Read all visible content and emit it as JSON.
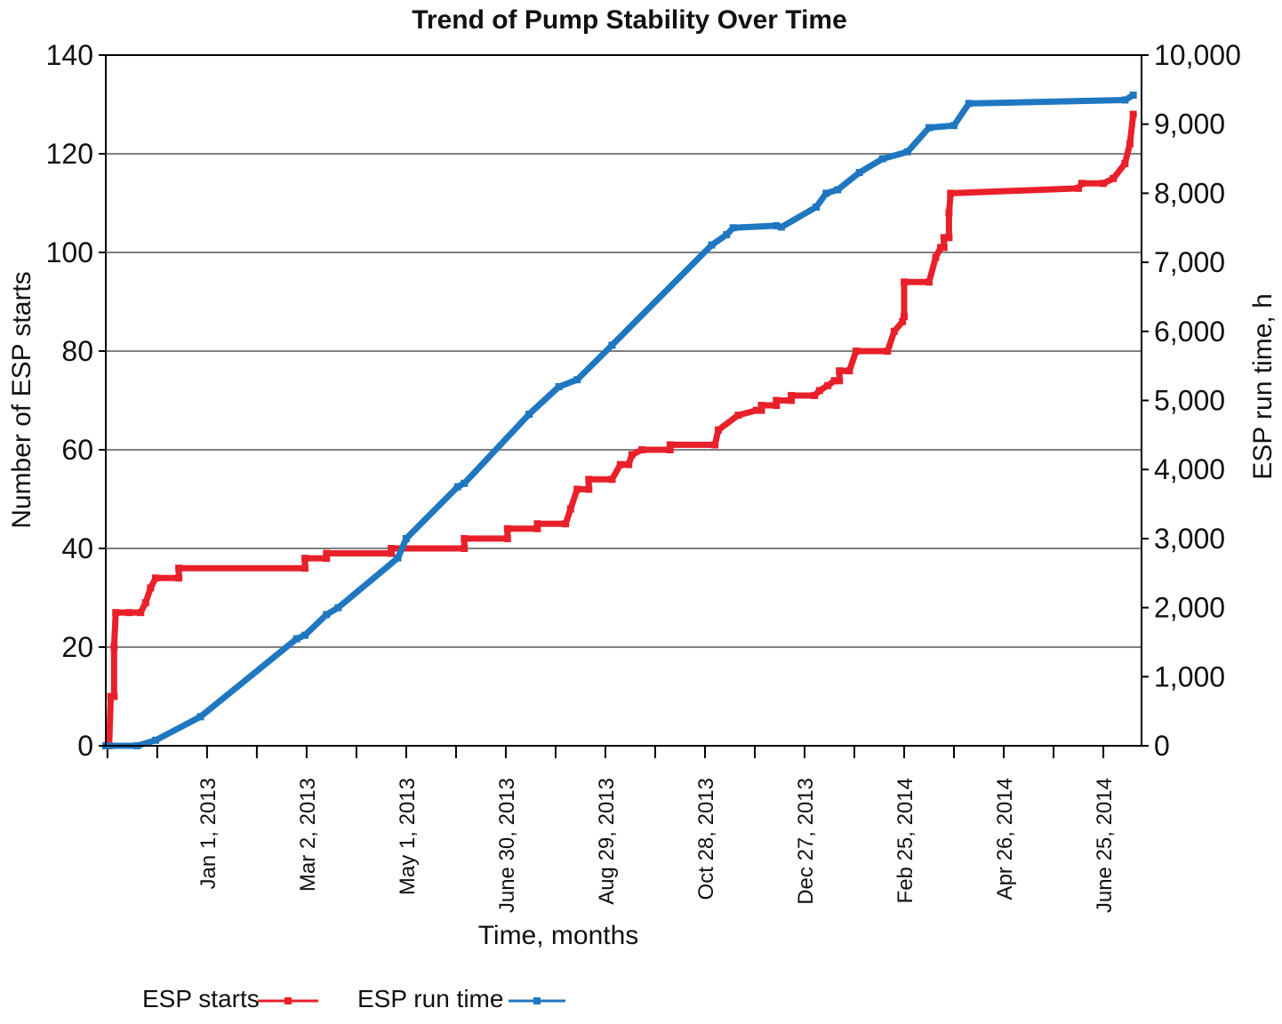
{
  "chart_data": {
    "type": "line",
    "title": "Trend of Pump Stability Over Time",
    "xlabel": "Time, months",
    "ylabel": "Number of ESP starts",
    "y2label": "ESP run time, h",
    "ylim": [
      0,
      140
    ],
    "y2lim": [
      0,
      10000
    ],
    "yticks": [
      "0",
      "20",
      "40",
      "60",
      "80",
      "100",
      "120",
      "140"
    ],
    "y2ticks": [
      "0",
      "1,000",
      "2,000",
      "3,000",
      "4,000",
      "5,000",
      "6,000",
      "7,000",
      "8,000",
      "9,000",
      "10,000"
    ],
    "xlim": [
      "2012-11-01",
      "2014-07-18"
    ],
    "xticks": [
      {
        "date": "2013-01-01",
        "label": "Jan 1, 2013"
      },
      {
        "date": "2013-03-02",
        "label": "Mar 2, 2013"
      },
      {
        "date": "2013-05-01",
        "label": "May 1, 2013"
      },
      {
        "date": "2013-06-30",
        "label": "June 30, 2013"
      },
      {
        "date": "2013-08-29",
        "label": "Aug 29, 2013"
      },
      {
        "date": "2013-10-28",
        "label": "Oct 28, 2013"
      },
      {
        "date": "2013-12-27",
        "label": "Dec 27, 2013"
      },
      {
        "date": "2014-02-25",
        "label": "Feb 25, 2014"
      },
      {
        "date": "2014-04-26",
        "label": "Apr 26, 2014"
      },
      {
        "date": "2014-06-25",
        "label": "June 25, 2014"
      }
    ],
    "grid": true,
    "legend_position": "bottom-left",
    "series": [
      {
        "name": "ESP starts",
        "axis": "left",
        "color": "#e8202a",
        "points": [
          [
            "2012-11-01",
            0
          ],
          [
            "2012-11-03",
            0
          ],
          [
            "2012-11-04",
            10
          ],
          [
            "2012-11-06",
            10
          ],
          [
            "2012-11-06",
            20
          ],
          [
            "2012-11-07",
            27
          ],
          [
            "2012-11-15",
            27
          ],
          [
            "2012-11-22",
            27
          ],
          [
            "2012-11-25",
            29
          ],
          [
            "2012-11-28",
            32
          ],
          [
            "2012-12-01",
            34
          ],
          [
            "2012-12-15",
            34
          ],
          [
            "2012-12-15",
            36
          ],
          [
            "2013-03-01",
            36
          ],
          [
            "2013-03-01",
            38
          ],
          [
            "2013-03-14",
            38
          ],
          [
            "2013-03-14",
            39
          ],
          [
            "2013-04-22",
            39
          ],
          [
            "2013-04-22",
            40
          ],
          [
            "2013-06-05",
            40
          ],
          [
            "2013-06-05",
            42
          ],
          [
            "2013-07-01",
            42
          ],
          [
            "2013-07-01",
            44
          ],
          [
            "2013-07-19",
            44
          ],
          [
            "2013-07-19",
            45
          ],
          [
            "2013-08-05",
            45
          ],
          [
            "2013-08-08",
            48
          ],
          [
            "2013-08-12",
            52
          ],
          [
            "2013-08-19",
            52
          ],
          [
            "2013-08-19",
            54
          ],
          [
            "2013-09-02",
            54
          ],
          [
            "2013-09-07",
            57
          ],
          [
            "2013-09-12",
            57
          ],
          [
            "2013-09-14",
            59
          ],
          [
            "2013-09-20",
            60
          ],
          [
            "2013-10-07",
            60
          ],
          [
            "2013-10-07",
            61
          ],
          [
            "2013-11-03",
            61
          ],
          [
            "2013-11-05",
            64
          ],
          [
            "2013-11-17",
            67
          ],
          [
            "2013-11-28",
            68
          ],
          [
            "2013-12-01",
            68
          ],
          [
            "2013-12-01",
            69
          ],
          [
            "2013-12-10",
            69
          ],
          [
            "2013-12-10",
            70
          ],
          [
            "2013-12-19",
            70
          ],
          [
            "2013-12-19",
            71
          ],
          [
            "2014-01-02",
            71
          ],
          [
            "2014-01-05",
            72
          ],
          [
            "2014-01-10",
            73
          ],
          [
            "2014-01-14",
            74
          ],
          [
            "2014-01-17",
            74
          ],
          [
            "2014-01-17",
            76
          ],
          [
            "2014-01-23",
            76
          ],
          [
            "2014-01-27",
            80
          ],
          [
            "2014-02-15",
            80
          ],
          [
            "2014-02-19",
            84
          ],
          [
            "2014-02-24",
            86
          ],
          [
            "2014-02-25",
            87
          ],
          [
            "2014-02-25",
            94
          ],
          [
            "2014-03-12",
            94
          ],
          [
            "2014-03-16",
            99
          ],
          [
            "2014-03-19",
            101
          ],
          [
            "2014-03-21",
            101
          ],
          [
            "2014-03-21",
            103
          ],
          [
            "2014-03-24",
            103
          ],
          [
            "2014-03-24",
            108
          ],
          [
            "2014-03-25",
            112
          ],
          [
            "2014-06-10",
            113
          ],
          [
            "2014-06-12",
            114
          ],
          [
            "2014-06-25",
            114
          ],
          [
            "2014-07-01",
            115
          ],
          [
            "2014-07-08",
            118
          ],
          [
            "2014-07-11",
            122
          ],
          [
            "2014-07-13",
            128
          ]
        ]
      },
      {
        "name": "ESP run time",
        "axis": "right",
        "color": "#1f77c0",
        "points": [
          [
            "2012-11-01",
            0
          ],
          [
            "2012-11-20",
            0
          ],
          [
            "2012-12-01",
            80
          ],
          [
            "2012-12-28",
            420
          ],
          [
            "2013-02-24",
            1550
          ],
          [
            "2013-03-01",
            1600
          ],
          [
            "2013-03-14",
            1900
          ],
          [
            "2013-03-21",
            2000
          ],
          [
            "2013-04-26",
            2720
          ],
          [
            "2013-05-01",
            3000
          ],
          [
            "2013-06-01",
            3750
          ],
          [
            "2013-06-05",
            3800
          ],
          [
            "2013-07-14",
            4800
          ],
          [
            "2013-08-01",
            5200
          ],
          [
            "2013-08-12",
            5300
          ],
          [
            "2013-09-02",
            5800
          ],
          [
            "2013-11-01",
            7250
          ],
          [
            "2013-11-10",
            7400
          ],
          [
            "2013-11-14",
            7500
          ],
          [
            "2013-12-10",
            7530
          ],
          [
            "2013-12-13",
            7510
          ],
          [
            "2014-01-03",
            7800
          ],
          [
            "2014-01-09",
            8000
          ],
          [
            "2014-01-16",
            8050
          ],
          [
            "2014-01-29",
            8300
          ],
          [
            "2014-02-12",
            8500
          ],
          [
            "2014-02-27",
            8600
          ],
          [
            "2014-03-12",
            8950
          ],
          [
            "2014-03-27",
            8980
          ],
          [
            "2014-04-05",
            9300
          ],
          [
            "2014-07-08",
            9350
          ],
          [
            "2014-07-13",
            9420
          ]
        ]
      }
    ]
  }
}
